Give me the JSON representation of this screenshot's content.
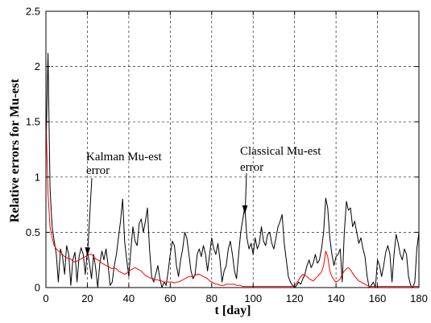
{
  "chart_data": {
    "type": "line",
    "xlabel": "t [day]",
    "ylabel": "Relative errors for Mu-est",
    "xlim": [
      0,
      180
    ],
    "ylim": [
      0,
      2.5
    ],
    "grid": true,
    "x_ticks": {
      "values": [
        0,
        20,
        40,
        60,
        80,
        100,
        120,
        140,
        160,
        180
      ],
      "labels": [
        "0",
        "20",
        "40",
        "60",
        "80",
        "100",
        "120",
        "140",
        "160",
        "180"
      ]
    },
    "y_ticks": {
      "values": [
        0,
        0.5,
        1,
        1.5,
        2,
        2.5
      ],
      "labels": [
        "0",
        "0.5",
        "1",
        "1.5",
        "2",
        "2.5"
      ]
    },
    "x": [
      0,
      1,
      2,
      3,
      4,
      5,
      6,
      7,
      8,
      9,
      10,
      11,
      12,
      13,
      14,
      15,
      16,
      17,
      18,
      19,
      20,
      21,
      22,
      23,
      24,
      25,
      26,
      27,
      28,
      29,
      30,
      31,
      32,
      33,
      34,
      35,
      36,
      37,
      38,
      39,
      40,
      41,
      42,
      43,
      44,
      45,
      46,
      47,
      48,
      49,
      50,
      51,
      52,
      53,
      54,
      55,
      56,
      57,
      58,
      59,
      60,
      61,
      62,
      63,
      64,
      65,
      66,
      67,
      68,
      69,
      70,
      71,
      72,
      73,
      74,
      75,
      76,
      77,
      78,
      79,
      80,
      81,
      82,
      83,
      84,
      85,
      86,
      87,
      88,
      89,
      90,
      91,
      92,
      93,
      94,
      95,
      96,
      97,
      98,
      99,
      100,
      101,
      102,
      103,
      104,
      105,
      106,
      107,
      108,
      109,
      110,
      111,
      112,
      113,
      114,
      115,
      116,
      117,
      118,
      119,
      120,
      121,
      122,
      123,
      124,
      125,
      126,
      127,
      128,
      129,
      130,
      131,
      132,
      133,
      134,
      135,
      136,
      137,
      138,
      139,
      140,
      141,
      142,
      143,
      144,
      145,
      146,
      147,
      148,
      149,
      150,
      151,
      152,
      153,
      154,
      155,
      156,
      157,
      158,
      159,
      160,
      161,
      162,
      163,
      164,
      165,
      166,
      167,
      168,
      169,
      170,
      171,
      172,
      173,
      174,
      175,
      176,
      177,
      178,
      179,
      180
    ],
    "series": [
      {
        "color": "#000000",
        "values": [
          1.2,
          2.12,
          0.9,
          0.55,
          0.42,
          0.3,
          0.05,
          0.35,
          0.28,
          0.12,
          0.38,
          0.3,
          0.02,
          0.25,
          0.32,
          0.05,
          0.28,
          0.36,
          0.3,
          0.12,
          0.34,
          0.22,
          0.08,
          0.3,
          0.18,
          0.0,
          0.22,
          0.33,
          0.25,
          0.35,
          0.2,
          0.02,
          0.05,
          0.2,
          0.3,
          0.45,
          0.6,
          0.8,
          0.42,
          0.25,
          0.1,
          0.35,
          0.55,
          0.42,
          0.38,
          0.58,
          0.62,
          0.5,
          0.6,
          0.72,
          0.35,
          0.1,
          0.05,
          0.12,
          0.2,
          0.08,
          0.0,
          0.05,
          0.02,
          0.15,
          0.3,
          0.42,
          0.38,
          0.2,
          0.1,
          0.25,
          0.35,
          0.5,
          0.45,
          0.3,
          0.15,
          0.08,
          0.12,
          0.3,
          0.35,
          0.28,
          0.38,
          0.3,
          0.15,
          0.3,
          0.45,
          0.35,
          0.3,
          0.4,
          0.25,
          0.05,
          0.15,
          0.2,
          0.35,
          0.42,
          0.3,
          0.15,
          0.08,
          0.3,
          0.5,
          0.62,
          0.73,
          0.45,
          0.35,
          0.4,
          0.3,
          0.45,
          0.35,
          0.4,
          0.55,
          0.42,
          0.38,
          0.48,
          0.5,
          0.4,
          0.35,
          0.45,
          0.55,
          0.6,
          0.66,
          0.4,
          0.25,
          0.1,
          0.05,
          0.02,
          0.0,
          0.02,
          0.05,
          0.03,
          0.08,
          0.12,
          0.2,
          0.25,
          0.18,
          0.22,
          0.3,
          0.22,
          0.25,
          0.35,
          0.5,
          0.81,
          0.72,
          0.45,
          0.3,
          0.2,
          0.28,
          0.3,
          0.35,
          0.05,
          0.5,
          0.78,
          0.7,
          0.72,
          0.55,
          0.6,
          0.5,
          0.4,
          0.45,
          0.35,
          0.28,
          0.1,
          0.0,
          0.02,
          0.05,
          0.0,
          0.25,
          0.2,
          0.1,
          0.2,
          0.32,
          0.38,
          0.3,
          0.05,
          0.3,
          0.48,
          0.4,
          0.3,
          0.25,
          0.35,
          0.3,
          0.1,
          0.02,
          0.0,
          0.05,
          0.35,
          0.5
        ]
      },
      {
        "color": "#ff0000",
        "values": [
          1.55,
          0.85,
          0.55,
          0.45,
          0.38,
          0.35,
          0.33,
          0.32,
          0.3,
          0.28,
          0.27,
          0.26,
          0.26,
          0.24,
          0.23,
          0.24,
          0.25,
          0.26,
          0.27,
          0.28,
          0.29,
          0.3,
          0.3,
          0.28,
          0.26,
          0.25,
          0.24,
          0.22,
          0.21,
          0.2,
          0.19,
          0.18,
          0.17,
          0.18,
          0.17,
          0.15,
          0.14,
          0.13,
          0.12,
          0.13,
          0.15,
          0.16,
          0.17,
          0.18,
          0.17,
          0.16,
          0.15,
          0.13,
          0.11,
          0.1,
          0.09,
          0.08,
          0.08,
          0.07,
          0.07,
          0.06,
          0.06,
          0.05,
          0.05,
          0.05,
          0.05,
          0.05,
          0.04,
          0.05,
          0.05,
          0.06,
          0.07,
          0.08,
          0.09,
          0.1,
          0.1,
          0.1,
          0.11,
          0.12,
          0.12,
          0.11,
          0.1,
          0.09,
          0.08,
          0.06,
          0.05,
          0.04,
          0.03,
          0.03,
          0.02,
          0.02,
          0.02,
          0.03,
          0.03,
          0.03,
          0.03,
          0.03,
          0.02,
          0.02,
          0.02,
          0.01,
          0.01,
          0.01,
          0.01,
          0.01,
          0.01,
          0.01,
          0.01,
          0.01,
          0.01,
          0.01,
          0.01,
          0.01,
          0.01,
          0.01,
          0.01,
          0.01,
          0.01,
          0.01,
          0.01,
          0.01,
          0.01,
          0.01,
          0.01,
          0.01,
          0.02,
          0.04,
          0.07,
          0.1,
          0.12,
          0.11,
          0.1,
          0.08,
          0.07,
          0.06,
          0.08,
          0.1,
          0.12,
          0.14,
          0.2,
          0.33,
          0.28,
          0.15,
          0.1,
          0.07,
          0.05,
          0.06,
          0.08,
          0.12,
          0.15,
          0.17,
          0.18,
          0.16,
          0.13,
          0.1,
          0.08,
          0.06,
          0.05,
          0.04,
          0.03,
          0.02,
          0.01,
          0.01,
          0.01,
          0.01,
          0.01,
          0.01,
          0.01,
          0.01,
          0.01,
          0.01,
          0.01,
          0.01,
          0.01,
          0.01,
          0.01,
          0.01,
          0.01,
          0.01,
          0.01,
          0.01,
          0.01,
          0.01,
          0.01,
          0.01,
          0.01
        ]
      }
    ],
    "annotations": [
      {
        "lines": [
          "Kalman Mu-est",
          "error"
        ]
      },
      {
        "lines": [
          "Classical Mu-est",
          "error"
        ]
      }
    ]
  }
}
